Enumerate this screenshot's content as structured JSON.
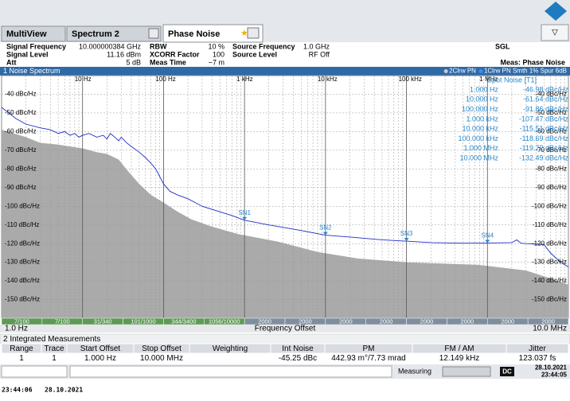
{
  "header": {
    "tabs": [
      "MultiView",
      "Spectrum 2",
      "Phase Noise"
    ]
  },
  "settings": [
    {
      "label": "Signal Frequency",
      "value": "10.000000384 GHz"
    },
    {
      "label": "Signal Level",
      "value": "11.16 dBm"
    },
    {
      "label": "Att",
      "value": "5 dB"
    },
    {
      "label": "RBW",
      "value": "10 %"
    },
    {
      "label": "XCORR Factor",
      "value": "100"
    },
    {
      "label": "Meas Time",
      "value": "~7 m"
    },
    {
      "label": "Source Frequency",
      "value": "1.0 GHz"
    },
    {
      "label": "Source Level",
      "value": "RF Off"
    }
  ],
  "mode": "SGL",
  "measurement": "Meas: Phase Noise",
  "chart_data": {
    "type": "line",
    "title": "1 Noise Spectrum",
    "xlabel": "Frequency Offset",
    "x_start_label": "1.0 Hz",
    "x_end_label": "10.0 MHz",
    "xscale": "log",
    "xlim": [
      1,
      10000000
    ],
    "xticks": [
      {
        "value": 10,
        "label": "10 Hz"
      },
      {
        "value": 100,
        "label": "100 Hz"
      },
      {
        "value": 1000,
        "label": "1 kHz"
      },
      {
        "value": 10000,
        "label": "10 kHz"
      },
      {
        "value": 100000,
        "label": "100 kHz"
      },
      {
        "value": 1000000,
        "label": "1 MHz"
      }
    ],
    "ylim": [
      -160,
      -30
    ],
    "yticks": [
      {
        "value": -40,
        "label": "-40 dBc/Hz"
      },
      {
        "value": -50,
        "label": "-50 dBc/Hz"
      },
      {
        "value": -60,
        "label": "-60 dBc/Hz"
      },
      {
        "value": -70,
        "label": "-70 dBc/Hz"
      },
      {
        "value": -80,
        "label": "-80 dBc/Hz"
      },
      {
        "value": -90,
        "label": "-90 dBc/Hz"
      },
      {
        "value": -100,
        "label": "-100 dBc/Hz"
      },
      {
        "value": -110,
        "label": "-110 dBc/Hz"
      },
      {
        "value": -120,
        "label": "-120 dBc/Hz"
      },
      {
        "value": -130,
        "label": "-130 dBc/Hz"
      },
      {
        "value": -140,
        "label": "-140 dBc/Hz"
      },
      {
        "value": -150,
        "label": "-150 dBc/Hz"
      }
    ],
    "grid": true,
    "series": [
      {
        "name": "2Clrw PN",
        "color": "#aaaaaa",
        "style": "area",
        "x": [
          1,
          2,
          3,
          5,
          7,
          10,
          15,
          20,
          28,
          36,
          50,
          70,
          100,
          150,
          220,
          400,
          850,
          2600,
          8000,
          25000,
          100000,
          770000,
          3000000,
          7000000,
          10000000
        ],
        "values": [
          -59,
          -63,
          -66,
          -67,
          -68,
          -69,
          -71,
          -72,
          -75,
          -81,
          -88,
          -94,
          -98,
          -103,
          -107,
          -111,
          -115,
          -119,
          -124.5,
          -128,
          -130,
          -131.4,
          -134.4,
          -139.6,
          -142
        ]
      },
      {
        "name": "1Clrw PN Smth 1% Spur 6dB",
        "color": "#1f2fc0",
        "style": "line",
        "x": [
          1,
          1.5,
          2,
          3,
          4,
          5,
          6,
          7,
          8,
          9,
          10,
          12,
          15,
          18,
          20,
          22,
          25,
          28,
          30,
          35,
          40,
          50,
          60,
          70,
          80,
          100,
          120,
          150,
          200,
          300,
          500,
          700,
          1000,
          2000,
          5000,
          10000,
          20000,
          50000,
          100000,
          200000,
          500000,
          1000000,
          2000000,
          2300000,
          2600000,
          3000000,
          5000000,
          6000000,
          8000000,
          10000000
        ],
        "values": [
          -47,
          -53,
          -56,
          -58,
          -59,
          -61,
          -60,
          -62,
          -61,
          -63,
          -62,
          -61,
          -63,
          -62,
          -64,
          -61,
          -63,
          -65,
          -63,
          -66,
          -68,
          -71,
          -74,
          -77,
          -80,
          -88,
          -92,
          -94,
          -96,
          -100,
          -103,
          -105,
          -107.5,
          -110,
          -113,
          -115.5,
          -116.5,
          -118,
          -118.7,
          -119.5,
          -119.8,
          -119.7,
          -119.5,
          -118,
          -119.8,
          -120,
          -120.5,
          -125,
          -130,
          -132.5
        ]
      }
    ],
    "markers": {
      "title": "Spot Noise [T1]",
      "color": "#2a86c8",
      "x": [
        1,
        10,
        100,
        1000,
        10000,
        100000,
        1000000,
        10000000
      ],
      "x_labels": [
        "1.000 Hz",
        "10.000 Hz",
        "100.000 Hz",
        "1.000 kHz",
        "10.000 kHz",
        "100.000 kHz",
        "1.000 MHz",
        "10.000 MHz"
      ],
      "values": [
        -46.98,
        -61.64,
        -91.86,
        -107.47,
        -115.51,
        -118.69,
        -119.72,
        -132.49
      ],
      "value_labels": [
        "-46.98 dBc/Hz",
        "-61.64 dBc/Hz",
        "-91.86 dBc/Hz",
        "-107.47 dBc/Hz",
        "-115.51 dBc/Hz",
        "-118.69 dBc/Hz",
        "-119.72 dBc/Hz",
        "-132.49 dBc/Hz"
      ],
      "names": [
        null,
        null,
        null,
        "SN1",
        "SN2",
        "SN3",
        "SN4",
        null
      ]
    },
    "sweep_segments": [
      "7/100",
      "7/100",
      "31/340",
      "101/1000",
      "344/3400",
      "1056/10000",
      "2000",
      "2000",
      "2000",
      "2000",
      "2000",
      "2000",
      "2000",
      "2000"
    ]
  },
  "table": {
    "title": "2 Integrated Measurements",
    "columns": [
      "Range",
      "Trace",
      "Start Offset",
      "Stop Offset",
      "Weighting",
      "Int Noise",
      "PM",
      "FM / AM",
      "Jitter"
    ],
    "rows": [
      [
        "1",
        "1",
        "1.000 Hz",
        "10.000 MHz",
        null,
        "-45.25 dBc",
        "442.93 m°/7.73 mrad",
        "12.149 kHz",
        "123.037 fs"
      ]
    ]
  },
  "status": {
    "state": "Measuring",
    "badge": "DC",
    "date": "28.10.2021",
    "time": "23:44:05"
  },
  "footer": {
    "time": "23:44:06",
    "date": "28.10.2021"
  }
}
